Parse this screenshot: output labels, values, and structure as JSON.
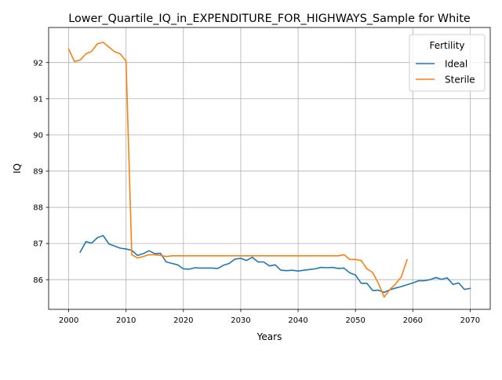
{
  "chart_data": {
    "type": "line",
    "title": "Lower_Quartile_IQ_in_EXPENDITURE_FOR_HIGHWAYS_Sample for White",
    "xlabel": "Years",
    "ylabel": "IQ",
    "xlim": [
      1996.5,
      2073.5
    ],
    "ylim": [
      85.18,
      92.97
    ],
    "xticks": [
      2000,
      2010,
      2020,
      2030,
      2040,
      2050,
      2060,
      2070
    ],
    "yticks": [
      86,
      87,
      88,
      89,
      90,
      91,
      92
    ],
    "grid": true,
    "legend": {
      "title": "Fertility",
      "placement": "top-right"
    },
    "series": [
      {
        "name": "Ideal",
        "color": "#1f77b4",
        "x": [
          2002,
          2003,
          2004,
          2005,
          2006,
          2007,
          2008,
          2009,
          2010,
          2011,
          2012,
          2013,
          2014,
          2015,
          2016,
          2017,
          2018,
          2019,
          2020,
          2021,
          2022,
          2023,
          2024,
          2025,
          2026,
          2027,
          2028,
          2029,
          2030,
          2031,
          2032,
          2033,
          2034,
          2035,
          2036,
          2037,
          2038,
          2039,
          2040,
          2041,
          2042,
          2043,
          2044,
          2045,
          2046,
          2047,
          2048,
          2049,
          2050,
          2051,
          2052,
          2053,
          2054,
          2055,
          2056,
          2057,
          2058,
          2059,
          2060,
          2061,
          2062,
          2063,
          2064,
          2065,
          2066,
          2067,
          2068,
          2069,
          2070
        ],
        "y": [
          86.76,
          87.05,
          87.01,
          87.16,
          87.22,
          86.99,
          86.93,
          86.87,
          86.85,
          86.81,
          86.67,
          86.72,
          86.8,
          86.72,
          86.73,
          86.49,
          86.45,
          86.41,
          86.3,
          86.29,
          86.33,
          86.32,
          86.32,
          86.32,
          86.31,
          86.4,
          86.45,
          86.57,
          86.59,
          86.53,
          86.62,
          86.49,
          86.49,
          86.38,
          86.41,
          86.26,
          86.25,
          86.26,
          86.24,
          86.26,
          86.28,
          86.3,
          86.34,
          86.33,
          86.34,
          86.31,
          86.32,
          86.19,
          86.13,
          85.9,
          85.9,
          85.7,
          85.71,
          85.65,
          85.72,
          85.77,
          85.81,
          85.86,
          85.91,
          85.97,
          85.97,
          86.0,
          86.06,
          86.01,
          86.05,
          85.87,
          85.91,
          85.73,
          85.76
        ]
      },
      {
        "name": "Sterile",
        "color": "#ff7f0e",
        "x": [
          2000,
          2001,
          2002,
          2003,
          2004,
          2005,
          2006,
          2007,
          2008,
          2009,
          2010,
          2011,
          2012,
          2013,
          2014,
          2015,
          2016,
          2017,
          2018,
          2019,
          2020,
          2021,
          2022,
          2023,
          2024,
          2025,
          2026,
          2027,
          2028,
          2029,
          2030,
          2031,
          2032,
          2033,
          2034,
          2035,
          2036,
          2037,
          2038,
          2039,
          2040,
          2041,
          2042,
          2043,
          2044,
          2045,
          2046,
          2047,
          2048,
          2049,
          2050,
          2051,
          2052,
          2053,
          2054,
          2055,
          2056,
          2057,
          2058,
          2059
        ],
        "y": [
          92.37,
          92.03,
          92.07,
          92.24,
          92.31,
          92.52,
          92.56,
          92.43,
          92.3,
          92.24,
          92.04,
          86.69,
          86.6,
          86.64,
          86.69,
          86.69,
          86.67,
          86.64,
          86.66,
          86.66,
          86.66,
          86.66,
          86.66,
          86.66,
          86.66,
          86.66,
          86.66,
          86.66,
          86.66,
          86.66,
          86.66,
          86.66,
          86.66,
          86.66,
          86.66,
          86.66,
          86.66,
          86.66,
          86.66,
          86.66,
          86.66,
          86.66,
          86.66,
          86.66,
          86.66,
          86.66,
          86.66,
          86.66,
          86.69,
          86.56,
          86.56,
          86.53,
          86.3,
          86.2,
          85.9,
          85.52,
          85.73,
          85.88,
          86.08,
          86.55
        ]
      }
    ]
  }
}
